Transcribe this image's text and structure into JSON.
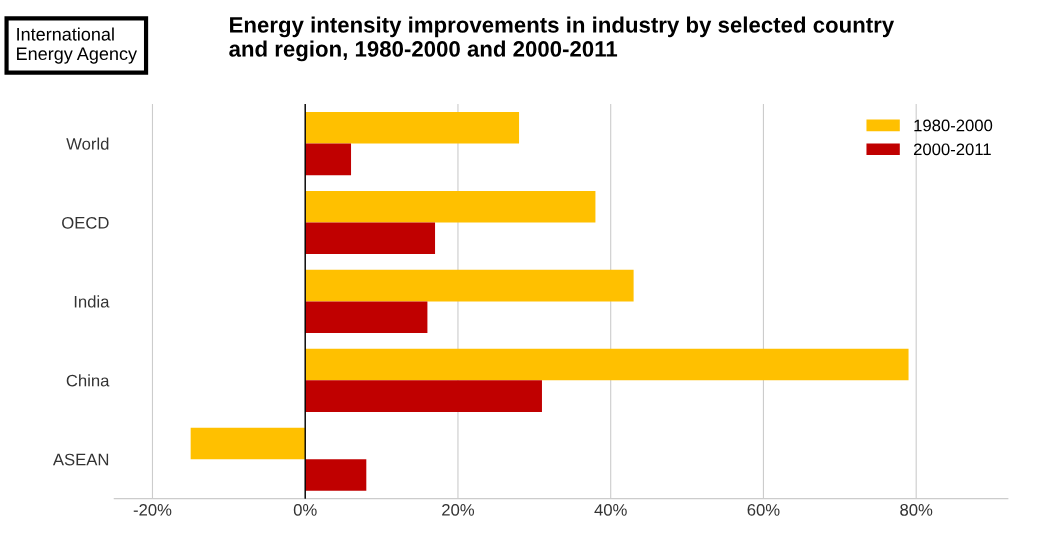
{
  "chart_data": {
    "type": "bar",
    "orientation": "horizontal",
    "title": "Energy intensity improvements in industry by selected country\nand region, 1980-2000 and 2000-2011",
    "annotations": [
      "International\nEnergy Agency"
    ],
    "categories": [
      "World",
      "OECD",
      "India",
      "China",
      "ASEAN"
    ],
    "series": [
      {
        "name": "1980-2000",
        "color": "#ffc000",
        "values": [
          28,
          38,
          43,
          79,
          -15
        ]
      },
      {
        "name": "2000-2011",
        "color": "#c00000",
        "values": [
          6,
          17,
          16,
          31,
          8
        ]
      }
    ],
    "xlim": [
      -25,
      92
    ],
    "xticks": [
      {
        "value": -20,
        "label": "-20%"
      },
      {
        "value": 0,
        "label": "0%"
      },
      {
        "value": 20,
        "label": "20%"
      },
      {
        "value": 40,
        "label": "40%"
      },
      {
        "value": 60,
        "label": "60%"
      },
      {
        "value": 80,
        "label": "80%"
      }
    ],
    "grid": "x",
    "legend": "top right"
  }
}
